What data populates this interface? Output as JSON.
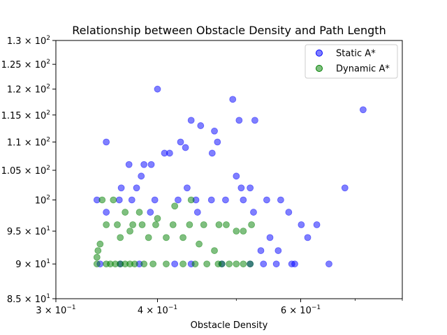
{
  "chart_data": {
    "type": "scatter",
    "title": "Relationship between Obstacle Density and Path Length",
    "xlabel": "Obstacle Density",
    "ylabel": "",
    "xscale": "log",
    "yscale": "log",
    "xlim": [
      0.3,
      0.8
    ],
    "ylim": [
      85,
      130
    ],
    "x_ticks": [
      {
        "value": 0.3,
        "mantissa": "3",
        "base": "10",
        "exp": "−1"
      },
      {
        "value": 0.4,
        "mantissa": "4",
        "base": "10",
        "exp": "−1"
      },
      {
        "value": 0.6,
        "mantissa": "6",
        "base": "10",
        "exp": "−1"
      }
    ],
    "x_minor_ticks": [
      0.5,
      0.7,
      0.8
    ],
    "y_ticks": [
      {
        "value": 85,
        "mantissa": "8.5",
        "base": "10",
        "exp": "1"
      },
      {
        "value": 90,
        "mantissa": "9",
        "base": "10",
        "exp": "1"
      },
      {
        "value": 95,
        "mantissa": "9.5",
        "base": "10",
        "exp": "1"
      },
      {
        "value": 100,
        "mantissa": "",
        "base": "10",
        "exp": "2"
      },
      {
        "value": 105,
        "mantissa": "1.05",
        "base": "10",
        "exp": "2"
      },
      {
        "value": 110,
        "mantissa": "1.1",
        "base": "10",
        "exp": "2"
      },
      {
        "value": 115,
        "mantissa": "1.15",
        "base": "10",
        "exp": "2"
      },
      {
        "value": 120,
        "mantissa": "1.2",
        "base": "10",
        "exp": "2"
      },
      {
        "value": 125,
        "mantissa": "1.25",
        "base": "10",
        "exp": "2"
      },
      {
        "value": 130,
        "mantissa": "1.3",
        "base": "10",
        "exp": "2"
      }
    ],
    "grid": false,
    "legend_position": "top-right",
    "series": [
      {
        "name": "Static A*",
        "color": "#0000ff",
        "x": [
          0.716,
          0.68,
          0.4,
          0.495,
          0.504,
          0.527,
          0.44,
          0.452,
          0.346,
          0.427,
          0.474,
          0.47,
          0.467,
          0.433,
          0.414,
          0.408,
          0.393,
          0.385,
          0.369,
          0.382,
          0.5,
          0.507,
          0.52,
          0.377,
          0.361,
          0.435,
          0.337,
          0.359,
          0.372,
          0.397,
          0.424,
          0.446,
          0.466,
          0.485,
          0.51,
          0.545,
          0.567,
          0.346,
          0.392,
          0.448,
          0.525,
          0.58,
          0.601,
          0.628,
          0.612,
          0.55,
          0.563,
          0.536,
          0.34,
          0.36,
          0.38,
          0.42,
          0.44,
          0.48,
          0.52,
          0.54,
          0.56,
          0.585,
          0.59,
          0.65
        ],
        "y": [
          116,
          102,
          120,
          118,
          114,
          114,
          114,
          113,
          110,
          110,
          110,
          112,
          108,
          109,
          108,
          108,
          106,
          106,
          106,
          104,
          104,
          102,
          102,
          102,
          102,
          102,
          100,
          100,
          100,
          100,
          100,
          100,
          100,
          100,
          100,
          100,
          100,
          98,
          98,
          98,
          98,
          98,
          96,
          96,
          94,
          94,
          92,
          92,
          90,
          90,
          90,
          90,
          90,
          90,
          90,
          90,
          90,
          90,
          90,
          90
        ]
      },
      {
        "name": "Dynamic A*",
        "color": "#008000",
        "x": [
          0.337,
          0.337,
          0.338,
          0.346,
          0.35,
          0.355,
          0.36,
          0.365,
          0.37,
          0.375,
          0.385,
          0.395,
          0.41,
          0.43,
          0.445,
          0.46,
          0.475,
          0.48,
          0.49,
          0.5,
          0.51,
          0.52,
          0.346,
          0.357,
          0.373,
          0.383,
          0.398,
          0.418,
          0.438,
          0.456,
          0.476,
          0.486,
          0.5,
          0.51,
          0.522,
          0.34,
          0.36,
          0.37,
          0.39,
          0.41,
          0.43,
          0.45,
          0.47,
          0.342,
          0.353,
          0.365,
          0.38,
          0.4,
          0.42,
          0.44
        ],
        "y": [
          90,
          91,
          92,
          90,
          90,
          90,
          90,
          90,
          90,
          90,
          90,
          90,
          90,
          90,
          90,
          90,
          90,
          90,
          90,
          90,
          90,
          90,
          96,
          96,
          96,
          96,
          96,
          96,
          96,
          96,
          96,
          96,
          95,
          95,
          96,
          93,
          94,
          95,
          94,
          94,
          94,
          93,
          92,
          100,
          100,
          98,
          98,
          97,
          99,
          100
        ]
      }
    ]
  }
}
